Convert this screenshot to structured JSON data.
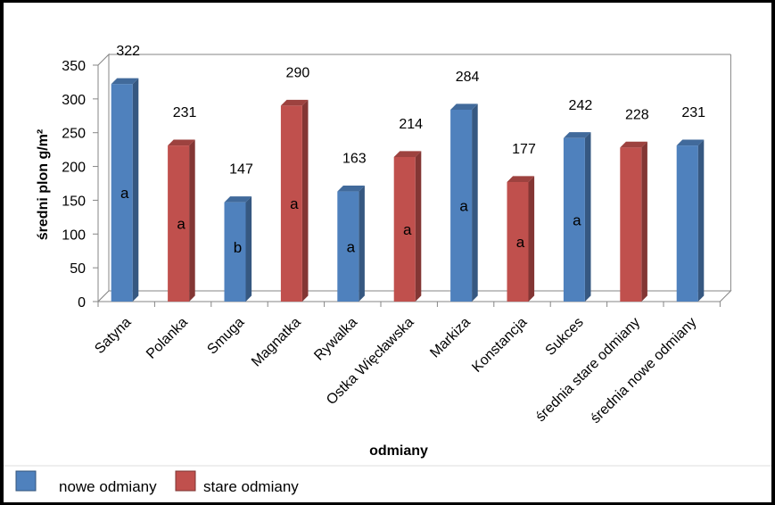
{
  "chart_data": {
    "type": "bar",
    "title": "",
    "xlabel": "odmiany",
    "ylabel": "średni plon g/m²",
    "ylim": [
      0,
      350
    ],
    "yticks": [
      0,
      50,
      100,
      150,
      200,
      250,
      300,
      350
    ],
    "grid": false,
    "legend_position": "bottom-left",
    "categories": [
      "Satyna",
      "Polanka",
      "Smuga",
      "Magnatka",
      "Rywalka",
      "Ostka Więcławska",
      "Markiza",
      "Konstancja",
      "Sukces",
      "średnia stare odmiany",
      "średnia nowe odmiany"
    ],
    "values": [
      322,
      231,
      147,
      290,
      163,
      214,
      284,
      177,
      242,
      228,
      231
    ],
    "value_labels": [
      "322",
      "231",
      "147",
      "290",
      "163",
      "214",
      "284",
      "177",
      "242",
      "228",
      "231"
    ],
    "groups": [
      "nowe odmiany",
      "stare odmiany",
      "nowe odmiany",
      "stare odmiany",
      "nowe odmiany",
      "stare odmiany",
      "nowe odmiany",
      "stare odmiany",
      "nowe odmiany",
      "stare odmiany",
      "nowe odmiany"
    ],
    "significance_letters": [
      "a",
      "a",
      "b",
      "a",
      "a",
      "a",
      "a",
      "a",
      "a",
      "",
      ""
    ],
    "legend": [
      {
        "name": "nowe odmiany",
        "color": "#4F81BD"
      },
      {
        "name": "stare odmiany",
        "color": "#C0504D"
      }
    ]
  }
}
